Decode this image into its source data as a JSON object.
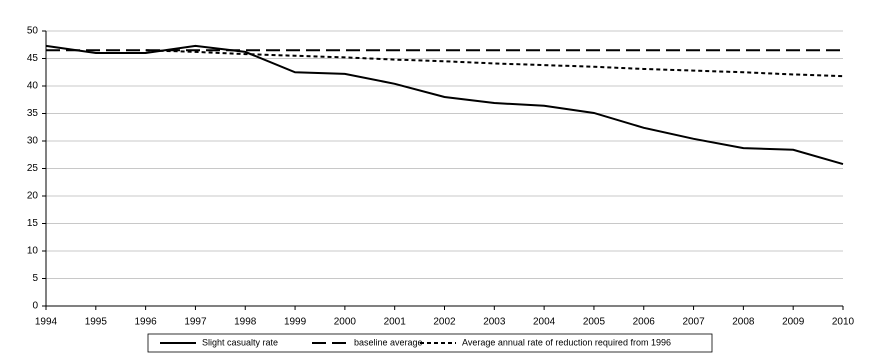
{
  "chart_data": {
    "type": "line",
    "categories": [
      "1994",
      "1995",
      "1996",
      "1997",
      "1998",
      "1999",
      "2000",
      "2001",
      "2002",
      "2003",
      "2004",
      "2005",
      "2006",
      "2007",
      "2008",
      "2009",
      "2010"
    ],
    "series": [
      {
        "name": "Slight casualty rate",
        "color": "#000000",
        "dash": "solid",
        "values": [
          47.3,
          46.0,
          46.0,
          47.3,
          46.2,
          42.5,
          42.2,
          40.4,
          38.0,
          36.9,
          36.4,
          35.1,
          32.4,
          30.4,
          28.7,
          28.4,
          25.8
        ]
      },
      {
        "name": "baseline average",
        "color": "#000000",
        "dash": "long",
        "values": [
          46.5,
          46.5,
          46.5,
          46.5,
          46.5,
          46.5,
          46.5,
          46.5,
          46.5,
          46.5,
          46.5,
          46.5,
          46.5,
          46.5,
          46.5,
          46.5,
          46.5
        ]
      },
      {
        "name": "Average annual rate of reduction required from 1996",
        "color": "#000000",
        "dash": "short",
        "values": [
          null,
          null,
          46.5,
          46.2,
          45.8,
          45.5,
          45.2,
          44.8,
          44.5,
          44.1,
          43.8,
          43.5,
          43.1,
          42.8,
          42.5,
          42.1,
          41.8
        ]
      }
    ],
    "ylim": [
      0,
      50
    ],
    "yticks": [
      0,
      5,
      10,
      15,
      20,
      25,
      30,
      35,
      40,
      45,
      50
    ],
    "grid": true,
    "legend": "bottom"
  }
}
